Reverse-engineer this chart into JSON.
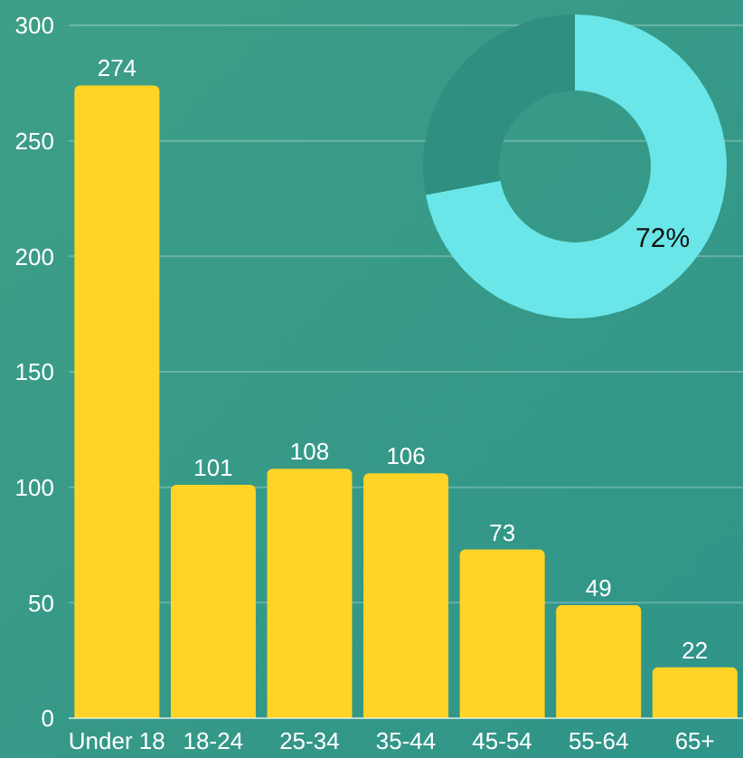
{
  "chart_data": [
    {
      "type": "bar",
      "categories": [
        "Under 18",
        "18-24",
        "25-34",
        "35-44",
        "45-54",
        "55-64",
        "65+"
      ],
      "values": [
        274,
        101,
        108,
        106,
        73,
        49,
        22
      ],
      "color": "#ffd426",
      "ylim": [
        0,
        300
      ],
      "yticks": [
        0,
        50,
        100,
        150,
        200,
        250,
        300
      ],
      "grid": "y",
      "data_labels": true
    },
    {
      "type": "donut",
      "categories": [
        null,
        null
      ],
      "values": [
        72,
        28
      ],
      "colors": [
        "#6ae6e8",
        "#2f8f80"
      ],
      "value_labels": [
        "72%",
        null
      ]
    }
  ]
}
